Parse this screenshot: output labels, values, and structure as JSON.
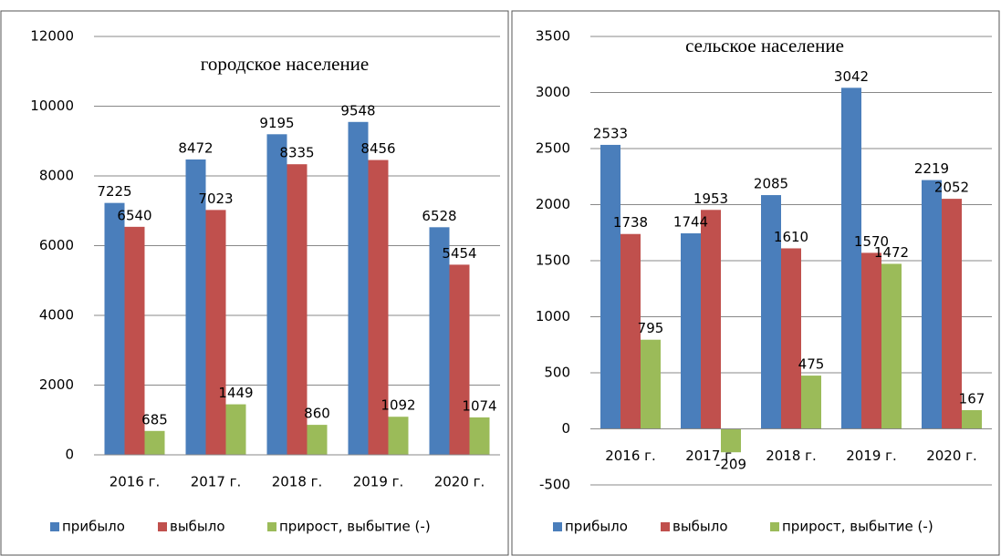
{
  "chart_data": [
    {
      "type": "bar",
      "title": "городское население",
      "categories": [
        "2016 г.",
        "2017 г.",
        "2018 г.",
        "2019 г.",
        "2020 г."
      ],
      "series": [
        {
          "name": "прибыло",
          "color": "#4a7ebb",
          "values": [
            7225,
            8472,
            9195,
            9548,
            6528
          ]
        },
        {
          "name": "выбыло",
          "color": "#c0504d",
          "values": [
            6540,
            7023,
            8335,
            8456,
            5454
          ]
        },
        {
          "name": "прирост, выбытие (-)",
          "color": "#9bbb59",
          "values": [
            685,
            1449,
            860,
            1092,
            1074
          ]
        }
      ],
      "ylim": [
        0,
        12000
      ],
      "yticks": [
        0,
        2000,
        4000,
        6000,
        8000,
        10000,
        12000
      ],
      "grid": true,
      "legend": "bottom"
    },
    {
      "type": "bar",
      "title": "сельское население",
      "categories": [
        "2016 г.",
        "2017 г.",
        "2018 г.",
        "2019 г.",
        "2020 г."
      ],
      "series": [
        {
          "name": "прибыло",
          "color": "#4a7ebb",
          "values": [
            2533,
            1744,
            2085,
            3042,
            2219
          ]
        },
        {
          "name": "выбыло",
          "color": "#c0504d",
          "values": [
            1738,
            1953,
            1610,
            1570,
            2052
          ]
        },
        {
          "name": "прирост, выбытие (-)",
          "color": "#9bbb59",
          "values": [
            795,
            -209,
            475,
            1472,
            167
          ]
        }
      ],
      "ylim": [
        -500,
        3500
      ],
      "yticks": [
        -500,
        0,
        500,
        1000,
        1500,
        2000,
        2500,
        3000,
        3500
      ],
      "grid": true,
      "legend": "bottom"
    }
  ]
}
